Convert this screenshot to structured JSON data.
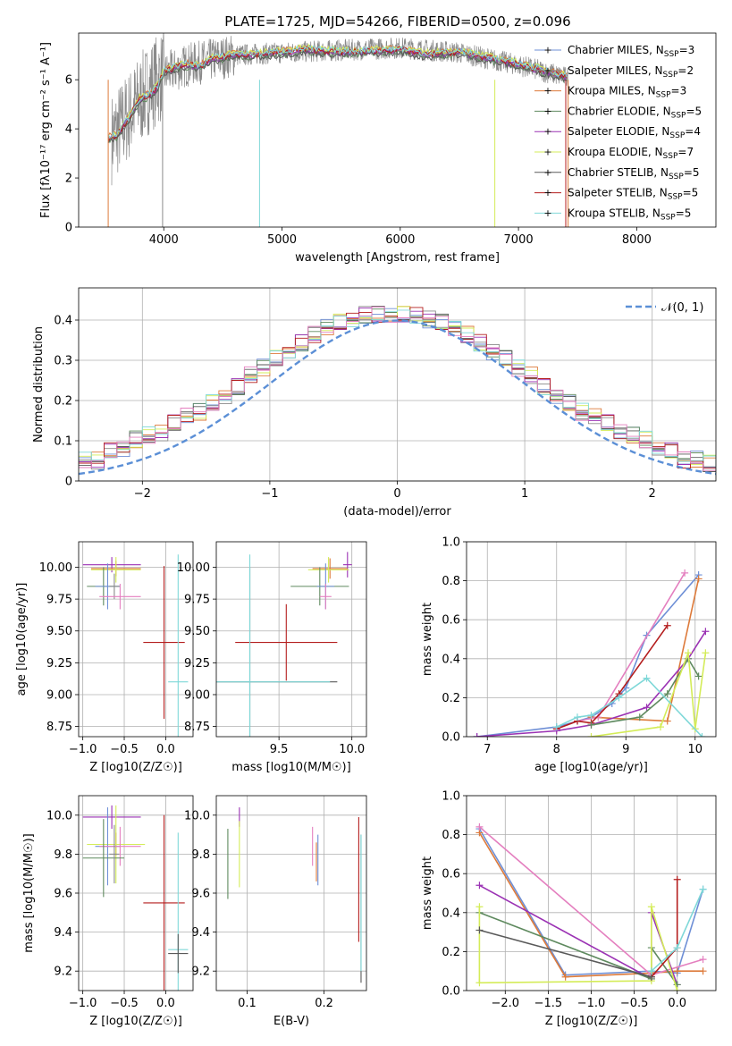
{
  "figure": {
    "title": "PLATE=1725, MJD=54266, FIBERID=0500, z=0.096"
  },
  "colors": {
    "Chabrier MILES": "#6e8fd6",
    "Salpeter MILES": "#8a8a8a",
    "Kroupa MILES": "#dd7a3a",
    "Chabrier ELODIE": "#5f8a5f",
    "Salpeter ELODIE": "#9b32b4",
    "Kroupa ELODIE": "#d4ec58",
    "Chabrier STELIB": "#5a5a5a",
    "Salpeter STELIB": "#b41e1e",
    "Kroupa STELIB": "#7fd8d8",
    "gaussian": "#5b8fd6",
    "pink": "#e47fbf"
  },
  "chart_data": [
    {
      "type": "line",
      "id": "spectrum",
      "title": "PLATE=1725, MJD=54266, FIBERID=0500, z=0.096",
      "xlabel": "wavelength [Angstrom, rest frame]",
      "ylabel": "Flux [fλ10⁻¹⁷ erg cm⁻² s⁻¹ A⁻¹]",
      "xlim": [
        3280,
        8670
      ],
      "ylim": [
        0,
        7.9
      ],
      "xticks": [
        4000,
        5000,
        6000,
        7000,
        8000
      ],
      "yticks": [
        0,
        2,
        4,
        6
      ],
      "grid": false,
      "legend_position": "right",
      "observed_envelope": {
        "x": [
          3560,
          3700,
          3800,
          3900,
          4000,
          4200,
          4400,
          4600,
          5000,
          5500,
          6000,
          6500,
          7000,
          7400
        ],
        "y": [
          3.6,
          4.5,
          5.2,
          5.8,
          6.2,
          6.6,
          6.8,
          7.0,
          7.1,
          7.2,
          7.3,
          7.1,
          6.6,
          6.1
        ]
      },
      "model_continuum": {
        "x": [
          3530,
          3600,
          3700,
          3800,
          3900,
          3950,
          4000,
          4100,
          4200,
          4300,
          4400,
          4500,
          4600,
          4800,
          5000,
          5200,
          5500,
          5800,
          6000,
          6200,
          6500,
          6800,
          7000,
          7200,
          7400
        ],
        "y": [
          3.6,
          3.7,
          4.4,
          5.2,
          5.4,
          5.7,
          6.3,
          6.5,
          6.6,
          6.5,
          6.8,
          6.9,
          7.0,
          7.0,
          7.1,
          7.2,
          7.1,
          7.15,
          7.2,
          7.0,
          7.1,
          6.8,
          6.6,
          6.35,
          6.1
        ]
      },
      "series": [
        {
          "name": "Chabrier MILES",
          "nssp": "3"
        },
        {
          "name": "Salpeter MILES",
          "nssp": "2"
        },
        {
          "name": "Kroupa MILES",
          "nssp": "3"
        },
        {
          "name": "Chabrier ELODIE",
          "nssp": "5"
        },
        {
          "name": "Salpeter ELODIE",
          "nssp": "4"
        },
        {
          "name": "Kroupa ELODIE",
          "nssp": "7"
        },
        {
          "name": "Chabrier STELIB",
          "nssp": "5"
        },
        {
          "name": "Salpeter STELIB",
          "nssp": "5"
        },
        {
          "name": "Kroupa STELIB",
          "nssp": "5"
        }
      ]
    },
    {
      "type": "line",
      "id": "residuals",
      "xlabel": "(data-model)/error",
      "ylabel": "Normed distribution",
      "xlim": [
        -2.5,
        2.5
      ],
      "ylim": [
        0,
        0.48
      ],
      "xticks": [
        -2,
        -1,
        0,
        1,
        2
      ],
      "yticks": [
        0.0,
        0.1,
        0.2,
        0.3,
        0.4
      ],
      "grid": true,
      "legend_position": "top-right",
      "legend": [
        "𝒩(0, 1)"
      ],
      "bin_width": 0.1,
      "histogram_base": [
        0.02,
        0.02,
        0.03,
        0.03,
        0.04,
        0.05,
        0.05,
        0.07,
        0.08,
        0.1,
        0.11,
        0.12,
        0.14,
        0.16,
        0.17,
        0.19,
        0.21,
        0.23,
        0.26,
        0.28,
        0.3,
        0.32,
        0.34,
        0.36,
        0.38,
        0.39,
        0.4,
        0.41,
        0.41,
        0.41,
        0.41,
        0.41,
        0.4,
        0.39,
        0.38,
        0.36,
        0.34,
        0.32,
        0.3,
        0.28,
        0.26,
        0.23,
        0.21,
        0.19,
        0.17,
        0.16,
        0.14,
        0.12,
        0.11,
        0.1,
        0.08,
        0.07,
        0.05,
        0.05,
        0.04,
        0.03,
        0.03,
        0.02,
        0.02,
        0.02
      ]
    },
    {
      "type": "scatter",
      "id": "age_vs_Z",
      "xlabel": "Z [log10(Z/Z☉)]",
      "ylabel": "age [log10(age/yr)]",
      "xlim": [
        -1.05,
        0.33
      ],
      "ylim": [
        8.67,
        10.2
      ],
      "xticks": [
        "-1.0",
        "-0.5",
        "0.0"
      ],
      "yticks": [
        "8.75",
        "9.00",
        "9.25",
        "9.50",
        "9.75",
        "10.00"
      ],
      "grid": true,
      "points": [
        {
          "series": "Salpeter ELODIE",
          "x": -0.65,
          "xerr": 0.35,
          "y": 10.02,
          "yerr": 0.06
        },
        {
          "series": "Kroupa MILES",
          "x": -0.6,
          "xerr": 0.3,
          "y": 9.99,
          "yerr": 0.06
        },
        {
          "series": "Kroupa ELODIE",
          "x": -0.6,
          "xerr": 0.3,
          "y": 9.98,
          "yerr": 0.1
        },
        {
          "series": "Chabrier ELODIE",
          "x": -0.75,
          "xerr": 0.2,
          "y": 9.85,
          "yerr": 0.15
        },
        {
          "series": "Chabrier MILES",
          "x": -0.7,
          "xerr": 0.15,
          "y": 9.85,
          "yerr": 0.18
        },
        {
          "series": "Salpeter MILES",
          "x": -0.62,
          "xerr": 0.06,
          "y": 9.85,
          "yerr": 0.1
        },
        {
          "series": "pink",
          "x": -0.55,
          "xerr": 0.25,
          "y": 9.77,
          "yerr": 0.1
        },
        {
          "series": "Salpeter STELIB",
          "x": -0.02,
          "xerr": 0.25,
          "y": 9.41,
          "yerr": 0.6
        },
        {
          "series": "Kroupa STELIB",
          "x": 0.15,
          "xerr": 0.12,
          "y": 9.1,
          "yerr": 1.0
        }
      ]
    },
    {
      "type": "scatter",
      "id": "age_vs_mass",
      "xlabel": "mass [log10(M/M☉)]",
      "xlim": [
        9.07,
        10.1
      ],
      "ylim": [
        8.67,
        10.2
      ],
      "xticks": [
        "9.5",
        "10.0"
      ],
      "yticks": [
        "8.75",
        "9.00",
        "9.25",
        "9.50",
        "9.75",
        "10.00"
      ],
      "grid": true,
      "points": [
        {
          "series": "Salpeter ELODIE",
          "x": 9.97,
          "xerr": 0.03,
          "y": 10.02,
          "yerr": 0.1
        },
        {
          "series": "Kroupa MILES",
          "x": 9.85,
          "xerr": 0.12,
          "y": 9.99,
          "yerr": 0.08
        },
        {
          "series": "Kroupa ELODIE",
          "x": 9.84,
          "xerr": 0.14,
          "y": 9.98,
          "yerr": 0.1
        },
        {
          "series": "Chabrier ELODIE",
          "x": 9.78,
          "xerr": 0.2,
          "y": 9.85,
          "yerr": 0.15
        },
        {
          "series": "Chabrier MILES",
          "x": 9.82,
          "xerr": 0.06,
          "y": 9.85,
          "yerr": 0.18
        },
        {
          "series": "pink",
          "x": 9.82,
          "xerr": 0.04,
          "y": 9.77,
          "yerr": 0.1
        },
        {
          "series": "Salpeter STELIB",
          "x": 9.55,
          "xerr": 0.35,
          "y": 9.41,
          "yerr": 0.3
        },
        {
          "series": "Chabrier STELIB",
          "x": 9.3,
          "xerr": 0.6,
          "y": 9.1,
          "yerr": 0.9
        },
        {
          "series": "Kroupa STELIB",
          "x": 9.3,
          "xerr": 0.55,
          "y": 9.1,
          "yerr": 1.0
        }
      ]
    },
    {
      "type": "line",
      "id": "weight_vs_age",
      "xlabel": "age [log10(age/yr)]",
      "ylabel": "mass weight",
      "xlim": [
        6.7,
        10.3
      ],
      "ylim": [
        0,
        1.0
      ],
      "xticks": [
        7,
        8,
        9,
        10
      ],
      "yticks": [
        "0.0",
        "0.2",
        "0.4",
        "0.6",
        "0.8",
        "1.0"
      ],
      "grid": true,
      "series": [
        {
          "name": "Chabrier MILES",
          "x": [
            6.85,
            8.0,
            8.3,
            8.5,
            8.8,
            9.0,
            9.3,
            10.05
          ],
          "y": [
            0.0,
            0.05,
            0.08,
            0.1,
            0.17,
            0.25,
            0.52,
            0.83
          ]
        },
        {
          "name": "Kroupa MILES",
          "x": [
            8.5,
            9.6,
            10.05
          ],
          "y": [
            0.1,
            0.08,
            0.81
          ]
        },
        {
          "name": "pink",
          "x": [
            8.3,
            8.6,
            9.85
          ],
          "y": [
            0.08,
            0.1,
            0.84
          ]
        },
        {
          "name": "Salpeter STELIB",
          "x": [
            8.0,
            8.3,
            8.5,
            8.9,
            9.6
          ],
          "y": [
            0.04,
            0.08,
            0.07,
            0.22,
            0.57
          ]
        },
        {
          "name": "Salpeter ELODIE",
          "x": [
            6.85,
            8.0,
            8.5,
            9.3,
            9.9,
            10.15
          ],
          "y": [
            0.0,
            0.03,
            0.06,
            0.15,
            0.4,
            0.54
          ]
        },
        {
          "name": "Chabrier ELODIE",
          "x": [
            8.5,
            9.2,
            9.6,
            9.9,
            10.05
          ],
          "y": [
            0.06,
            0.1,
            0.22,
            0.4,
            0.31
          ]
        },
        {
          "name": "Kroupa ELODIE",
          "x": [
            8.5,
            9.5,
            9.9,
            10.0,
            10.15
          ],
          "y": [
            0.0,
            0.05,
            0.43,
            0.04,
            0.43
          ]
        },
        {
          "name": "Kroupa STELIB",
          "x": [
            8.0,
            8.3,
            8.5,
            8.9,
            9.3,
            10.1
          ],
          "y": [
            0.05,
            0.1,
            0.11,
            0.2,
            0.3,
            0.0
          ]
        }
      ]
    },
    {
      "type": "scatter",
      "id": "mass_vs_Z",
      "xlabel": "Z [log10(Z/Z☉)]",
      "ylabel": "mass [log10(M/M☉)]",
      "xlim": [
        -1.05,
        0.33
      ],
      "ylim": [
        9.1,
        10.1
      ],
      "xticks": [
        "-1.0",
        "-0.5",
        "0.0"
      ],
      "yticks": [
        "9.2",
        "9.4",
        "9.6",
        "9.8",
        "10.0"
      ],
      "grid": true,
      "points": [
        {
          "series": "Salpeter ELODIE",
          "x": -0.65,
          "xerr": 0.35,
          "y": 9.99,
          "yerr": 0.06
        },
        {
          "series": "Kroupa MILES",
          "x": -0.6,
          "xerr": 0.3,
          "y": 9.85,
          "yerr": 0.06
        },
        {
          "series": "Kroupa ELODIE",
          "x": -0.6,
          "xerr": 0.35,
          "y": 9.85,
          "yerr": 0.2
        },
        {
          "series": "Chabrier MILES",
          "x": -0.7,
          "xerr": 0.15,
          "y": 9.84,
          "yerr": 0.2
        },
        {
          "series": "pink",
          "x": -0.55,
          "xerr": 0.25,
          "y": 9.84,
          "yerr": 0.1
        },
        {
          "series": "Chabrier ELODIE",
          "x": -0.75,
          "xerr": 0.25,
          "y": 9.78,
          "yerr": 0.2
        },
        {
          "series": "Salpeter MILES",
          "x": -0.62,
          "xerr": 0.06,
          "y": 9.8,
          "yerr": 0.15
        },
        {
          "series": "Salpeter STELIB",
          "x": -0.02,
          "xerr": 0.25,
          "y": 9.55,
          "yerr": 0.45
        },
        {
          "series": "Kroupa STELIB",
          "x": 0.15,
          "xerr": 0.12,
          "y": 9.31,
          "yerr": 0.6
        },
        {
          "series": "Chabrier STELIB",
          "x": 0.15,
          "xerr": 0.12,
          "y": 9.29,
          "yerr": 0.1
        }
      ]
    },
    {
      "type": "scatter",
      "id": "mass_vs_EBV",
      "xlabel": "E(B-V)",
      "xlim": [
        0.06,
        0.255
      ],
      "ylim": [
        9.1,
        10.1
      ],
      "xticks": [
        "0.1",
        "0.2"
      ],
      "yticks": [
        "9.2",
        "9.4",
        "9.6",
        "9.8",
        "10.0"
      ],
      "grid": true,
      "points": [
        {
          "series": "Chabrier ELODIE",
          "x": 0.075,
          "xerr": 0,
          "y": 9.75,
          "yerr": 0.18
        },
        {
          "series": "Salpeter ELODIE",
          "x": 0.09,
          "xerr": 0,
          "y": 9.99,
          "yerr": 0.05
        },
        {
          "series": "Kroupa ELODIE",
          "x": 0.09,
          "xerr": 0,
          "y": 9.8,
          "yerr": 0.17
        },
        {
          "series": "pink",
          "x": 0.185,
          "xerr": 0,
          "y": 9.84,
          "yerr": 0.1
        },
        {
          "series": "Chabrier MILES",
          "x": 0.192,
          "xerr": 0,
          "y": 9.77,
          "yerr": 0.13
        },
        {
          "series": "Kroupa MILES",
          "x": 0.19,
          "xerr": 0,
          "y": 9.76,
          "yerr": 0.1
        },
        {
          "series": "Salpeter STELIB",
          "x": 0.245,
          "xerr": 0,
          "y": 9.67,
          "yerr": 0.32
        },
        {
          "series": "Chabrier STELIB",
          "x": 0.248,
          "xerr": 0,
          "y": 9.52,
          "yerr": 0.38
        },
        {
          "series": "Kroupa STELIB",
          "x": 0.248,
          "xerr": 0,
          "y": 9.55,
          "yerr": 0.35
        }
      ]
    },
    {
      "type": "line",
      "id": "weight_vs_Z",
      "xlabel": "Z [log10(Z/Z☉)]",
      "ylabel": "mass weight",
      "xlim": [
        -2.45,
        0.45
      ],
      "ylim": [
        0,
        1.0
      ],
      "xticks": [
        "-2.0",
        "-1.5",
        "-1.0",
        "-0.5",
        "0.0"
      ],
      "yticks": [
        "0.0",
        "0.2",
        "0.4",
        "0.6",
        "0.8",
        "1.0"
      ],
      "grid": true,
      "series": [
        {
          "name": "Chabrier MILES",
          "x": [
            -2.3,
            -1.3,
            -0.3,
            0.0,
            0.3
          ],
          "y": [
            0.83,
            0.08,
            0.1,
            0.09,
            0.52
          ]
        },
        {
          "name": "Kroupa MILES",
          "x": [
            -2.3,
            -1.3,
            -0.3,
            0.0,
            0.3
          ],
          "y": [
            0.81,
            0.07,
            0.09,
            0.1,
            0.1
          ]
        },
        {
          "name": "pink",
          "x": [
            -2.3,
            -0.3,
            0.3
          ],
          "y": [
            0.84,
            0.08,
            0.16
          ]
        },
        {
          "name": "Salpeter ELODIE",
          "x": [
            -2.3,
            -0.3,
            -0.3,
            0.0
          ],
          "y": [
            0.54,
            0.06,
            0.4,
            0.03
          ]
        },
        {
          "name": "Chabrier ELODIE",
          "x": [
            -2.3,
            -0.3,
            -0.3,
            0.0
          ],
          "y": [
            0.4,
            0.06,
            0.22,
            0.03
          ]
        },
        {
          "name": "Kroupa ELODIE",
          "x": [
            -2.3,
            -2.3,
            -0.3,
            -0.3,
            0.0
          ],
          "y": [
            0.43,
            0.04,
            0.05,
            0.43,
            0.0
          ]
        },
        {
          "name": "Salpeter STELIB",
          "x": [
            -0.3,
            0.0,
            0.0
          ],
          "y": [
            0.07,
            0.22,
            0.57
          ]
        },
        {
          "name": "Chabrier STELIB",
          "x": [
            -2.3,
            -0.3
          ],
          "y": [
            0.31,
            0.07
          ]
        },
        {
          "name": "Kroupa STELIB",
          "x": [
            -0.3,
            0.0,
            0.3
          ],
          "y": [
            0.1,
            0.22,
            0.52
          ]
        }
      ]
    }
  ]
}
